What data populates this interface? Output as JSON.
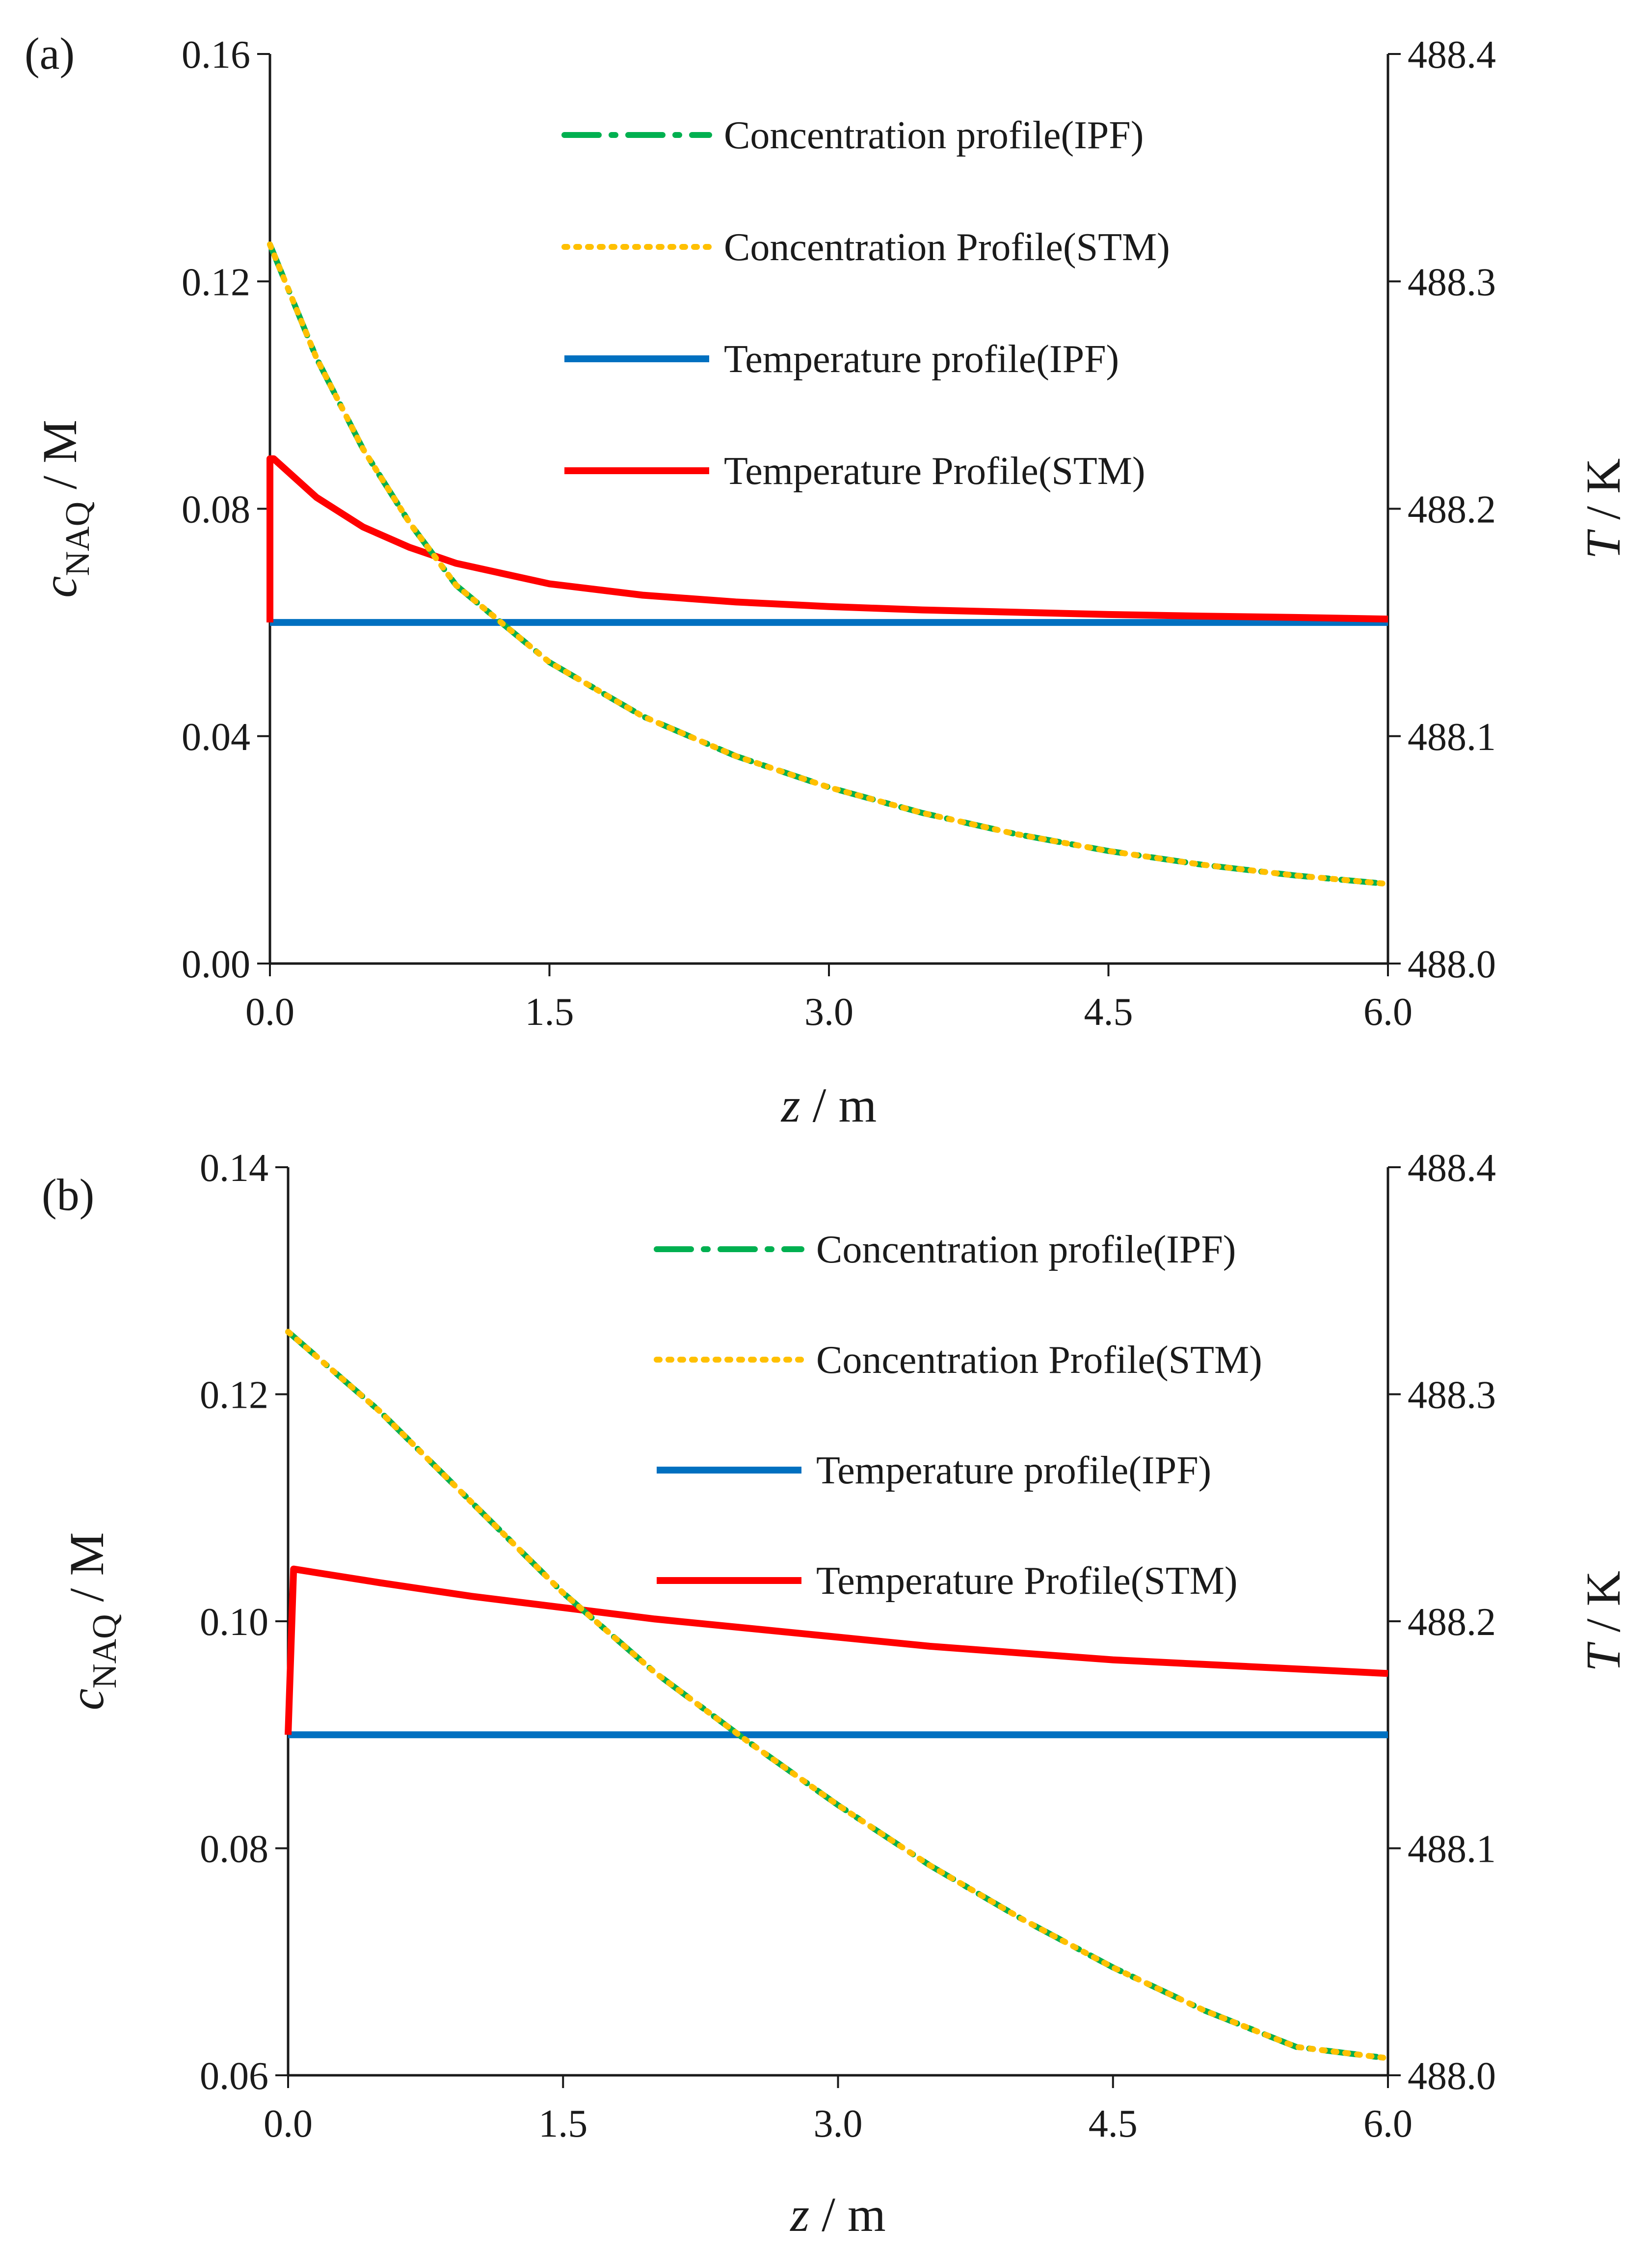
{
  "figure": {
    "background": "#ffffff"
  },
  "series_styles": {
    "conc_ipf": {
      "color": "#00B050",
      "dash": "dash-dot"
    },
    "conc_stm": {
      "color": "#FFC000",
      "dash": "dot"
    },
    "temp_ipf": {
      "color": "#0070C0",
      "dash": "solid"
    },
    "temp_stm": {
      "color": "#FF0000",
      "dash": "solid"
    }
  },
  "chart_data": [
    {
      "type": "line",
      "panel_label": "(a)",
      "xlabel_var": "z",
      "xlabel_unit": " / m",
      "ylabel_var": "c",
      "ylabel_sub": "NAQ",
      "ylabel_unit": " / M",
      "y2label_var": "T",
      "y2label_unit": " / K",
      "xlim": [
        0,
        6
      ],
      "ylim": [
        0,
        0.16
      ],
      "y2lim": [
        488.0,
        488.4
      ],
      "xticks": [
        "0.0",
        "1.5",
        "3.0",
        "4.5",
        "6.0"
      ],
      "yticks": [
        "0.00",
        "0.04",
        "0.08",
        "0.12",
        "0.16"
      ],
      "y2ticks": [
        "488.0",
        "488.1",
        "488.2",
        "488.3",
        "488.4"
      ],
      "legend": {
        "position": "top-right",
        "entries": [
          "Concentration profile(IPF)",
          "Concentration Profile(STM)",
          "Temperature profile(IPF)",
          "Temperature Profile(STM)"
        ]
      },
      "series": [
        {
          "name": "Concentration profile(IPF)",
          "style": "conc_ipf",
          "axis": "left",
          "x": [
            0,
            0.25,
            0.5,
            0.75,
            1.0,
            1.5,
            2.0,
            2.5,
            3.0,
            3.5,
            4.0,
            4.5,
            5.0,
            5.5,
            6.0
          ],
          "y": [
            0.1265,
            0.1065,
            0.0905,
            0.0775,
            0.0665,
            0.053,
            0.0435,
            0.0365,
            0.031,
            0.0265,
            0.0228,
            0.0198,
            0.0174,
            0.0155,
            0.014
          ]
        },
        {
          "name": "Concentration Profile(STM)",
          "style": "conc_stm",
          "axis": "left",
          "x": [
            0,
            0.25,
            0.5,
            0.75,
            1.0,
            1.5,
            2.0,
            2.5,
            3.0,
            3.5,
            4.0,
            4.5,
            5.0,
            5.5,
            6.0
          ],
          "y": [
            0.1265,
            0.1065,
            0.0905,
            0.0775,
            0.0665,
            0.053,
            0.0435,
            0.0365,
            0.031,
            0.0265,
            0.0228,
            0.0198,
            0.0174,
            0.0155,
            0.014
          ]
        },
        {
          "name": "Temperature profile(IPF)",
          "style": "temp_ipf",
          "axis": "right",
          "x": [
            0,
            6.0
          ],
          "y": [
            488.15,
            488.15
          ]
        },
        {
          "name": "Temperature Profile(STM)",
          "style": "temp_stm",
          "axis": "right",
          "x": [
            0,
            0.0,
            0.02,
            0.25,
            0.5,
            0.75,
            1.0,
            1.5,
            2.0,
            2.5,
            3.0,
            3.5,
            4.0,
            4.5,
            5.0,
            5.5,
            6.0
          ],
          "y": [
            488.15,
            488.222,
            488.222,
            488.205,
            488.192,
            488.183,
            488.176,
            488.167,
            488.162,
            488.159,
            488.157,
            488.1555,
            488.1545,
            488.1535,
            488.1528,
            488.1522,
            488.1515
          ]
        }
      ]
    },
    {
      "type": "line",
      "panel_label": "(b)",
      "xlabel_var": "z",
      "xlabel_unit": " / m",
      "ylabel_var": "c",
      "ylabel_sub": "NAQ",
      "ylabel_unit": " / M",
      "y2label_var": "T",
      "y2label_unit": " / K",
      "xlim": [
        0,
        6
      ],
      "ylim": [
        0.06,
        0.14
      ],
      "y2lim": [
        488.0,
        488.4
      ],
      "xticks": [
        "0.0",
        "1.5",
        "3.0",
        "4.5",
        "6.0"
      ],
      "yticks": [
        "0.06",
        "0.08",
        "0.10",
        "0.12",
        "0.14"
      ],
      "y2ticks": [
        "488.0",
        "488.1",
        "488.2",
        "488.3",
        "488.4"
      ],
      "legend": {
        "position": "top-right",
        "entries": [
          "Concentration profile(IPF)",
          "Concentration Profile(STM)",
          "Temperature profile(IPF)",
          "Temperature Profile(STM)"
        ]
      },
      "series": [
        {
          "name": "Concentration profile(IPF)",
          "style": "conc_ipf",
          "axis": "left",
          "x": [
            0,
            0.5,
            1.0,
            1.5,
            2.0,
            2.5,
            3.0,
            3.5,
            4.0,
            4.5,
            5.0,
            5.5,
            6.0
          ],
          "y": [
            0.1255,
            0.1185,
            0.1105,
            0.1025,
            0.0955,
            0.0895,
            0.0838,
            0.0785,
            0.0738,
            0.0695,
            0.0657,
            0.0625,
            0.0615
          ]
        },
        {
          "name": "Concentration Profile(STM)",
          "style": "conc_stm",
          "axis": "left",
          "x": [
            0,
            0.5,
            1.0,
            1.5,
            2.0,
            2.5,
            3.0,
            3.5,
            4.0,
            4.5,
            5.0,
            5.5,
            6.0
          ],
          "y": [
            0.1255,
            0.1185,
            0.1105,
            0.1025,
            0.0955,
            0.0895,
            0.0838,
            0.0785,
            0.0738,
            0.0695,
            0.0657,
            0.0625,
            0.0615
          ]
        },
        {
          "name": "Temperature profile(IPF)",
          "style": "temp_ipf",
          "axis": "right",
          "x": [
            0,
            6.0
          ],
          "y": [
            488.15,
            488.15
          ]
        },
        {
          "name": "Temperature Profile(STM)",
          "style": "temp_stm",
          "axis": "right",
          "x": [
            0,
            0.0,
            0.03,
            0.5,
            1.0,
            1.5,
            2.0,
            2.5,
            3.0,
            3.5,
            4.0,
            4.5,
            5.0,
            5.5,
            6.0
          ],
          "y": [
            488.15,
            488.15,
            488.223,
            488.217,
            488.211,
            488.206,
            488.201,
            488.197,
            488.193,
            488.189,
            488.186,
            488.183,
            488.181,
            488.179,
            488.177
          ]
        }
      ]
    }
  ]
}
